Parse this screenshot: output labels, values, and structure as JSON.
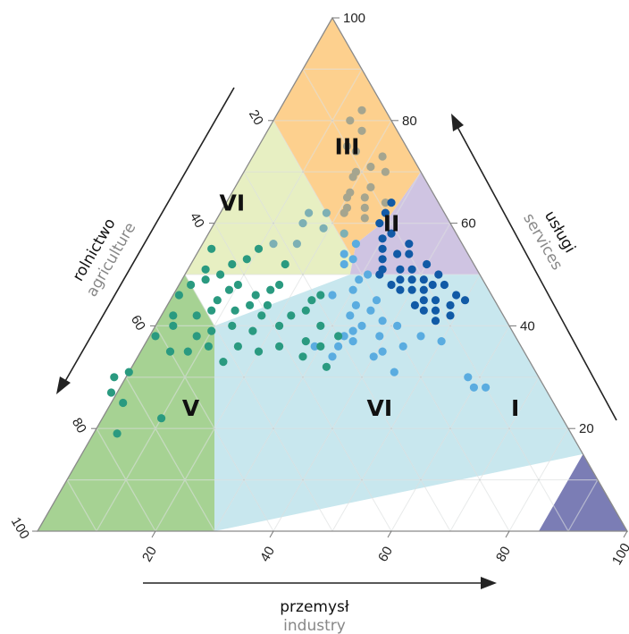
{
  "chart_data": {
    "type": "scatter",
    "subtype": "ternary",
    "axes": {
      "bottom": {
        "label_main": "przemysł",
        "label_sub": "industry",
        "ticks": [
          "20",
          "40",
          "60",
          "80",
          "100"
        ]
      },
      "left": {
        "label_main": "rolnictwo",
        "label_sub": "agriculture",
        "ticks": [
          "20",
          "40",
          "60",
          "80",
          "100"
        ]
      },
      "right": {
        "label_main": "usługi",
        "label_sub": "services",
        "ticks": [
          "20",
          "40",
          "60",
          "80",
          "100"
        ]
      }
    },
    "grid": true,
    "grid_step": 10,
    "colors": {
      "region_I": "#7b7db5",
      "region_II": "#cfc4e2",
      "region_III": "#fdd08e",
      "region_V": "#a6d293",
      "region_VI_top": "#e7efc2",
      "region_VI_center": "#c8e7ee",
      "point_agri": "#2a9a80",
      "point_mixed": "#7db0b4",
      "point_services": "#a5a58f",
      "point_industry": "#5aace0",
      "point_dark": "#115aa6"
    },
    "regions": [
      {
        "id": "I",
        "label": "I"
      },
      {
        "id": "II",
        "label": "II"
      },
      {
        "id": "III",
        "label": "III"
      },
      {
        "id": "V",
        "label": "V"
      },
      {
        "id": "VI-top",
        "label": "VI"
      },
      {
        "id": "VI-center",
        "label": "VI"
      }
    ],
    "series": [
      {
        "group": "services",
        "points": [
          [
            4,
            82
          ],
          [
            7,
            80
          ],
          [
            6,
            78
          ],
          [
            5,
            73
          ],
          [
            9,
            74
          ],
          [
            10,
            75
          ],
          [
            8,
            71
          ],
          [
            6,
            70
          ],
          [
            11,
            70
          ],
          [
            12,
            69
          ],
          [
            10,
            67
          ],
          [
            14,
            66
          ],
          [
            12,
            65
          ],
          [
            15,
            65
          ],
          [
            9,
            64
          ],
          [
            13,
            63
          ],
          [
            16,
            63
          ],
          [
            17,
            62
          ],
          [
            14,
            61
          ]
        ]
      },
      {
        "group": "mixed",
        "points": [
          [
            20,
            62
          ],
          [
            23,
            62
          ],
          [
            25,
            60
          ],
          [
            22,
            59
          ],
          [
            28,
            56
          ],
          [
            32,
            56
          ],
          [
            19,
            58
          ]
        ]
      },
      {
        "group": "dark",
        "points": [
          [
            8,
            64
          ],
          [
            10,
            62
          ],
          [
            12,
            60
          ],
          [
            11,
            58
          ],
          [
            13,
            57
          ],
          [
            9,
            56
          ],
          [
            14,
            55
          ],
          [
            10,
            54
          ],
          [
            12,
            54
          ],
          [
            15,
            53
          ],
          [
            8,
            52
          ],
          [
            11,
            51
          ],
          [
            13,
            51
          ],
          [
            16,
            51
          ],
          [
            7,
            50
          ],
          [
            10,
            49
          ],
          [
            12,
            49
          ],
          [
            14,
            49
          ],
          [
            9,
            48
          ],
          [
            11,
            47
          ],
          [
            13,
            47
          ],
          [
            15,
            47
          ],
          [
            6,
            46
          ],
          [
            10,
            45
          ],
          [
            12,
            45
          ],
          [
            8,
            44
          ],
          [
            14,
            44
          ],
          [
            11,
            43
          ],
          [
            13,
            43
          ],
          [
            9,
            42
          ],
          [
            12,
            41
          ],
          [
            7,
            48
          ],
          [
            16,
            48
          ],
          [
            17,
            50
          ],
          [
            5,
            45
          ]
        ]
      },
      {
        "group": "industry",
        "points": [
          [
            18,
            56
          ],
          [
            20,
            53
          ],
          [
            22,
            52
          ],
          [
            19,
            50
          ],
          [
            21,
            49
          ],
          [
            23,
            47
          ],
          [
            20,
            45
          ],
          [
            24,
            44
          ],
          [
            22,
            43
          ],
          [
            26,
            42
          ],
          [
            21,
            41
          ],
          [
            25,
            40
          ],
          [
            19,
            40
          ],
          [
            23,
            38
          ],
          [
            27,
            39
          ],
          [
            29,
            38
          ],
          [
            20,
            36
          ],
          [
            24,
            35
          ],
          [
            26,
            34
          ],
          [
            28,
            37
          ],
          [
            31,
            36
          ],
          [
            33,
            34
          ],
          [
            35,
            36
          ],
          [
            24,
            31
          ],
          [
            13,
            37
          ],
          [
            12,
            30
          ],
          [
            10,
            28
          ],
          [
            12,
            28
          ],
          [
            16,
            38
          ],
          [
            27,
            46
          ],
          [
            21,
            54
          ]
        ]
      },
      {
        "group": "agri",
        "points": [
          [
            35,
            55
          ],
          [
            38,
            53
          ],
          [
            41,
            52
          ],
          [
            44,
            50
          ],
          [
            47,
            49
          ],
          [
            50,
            48
          ],
          [
            44,
            47
          ],
          [
            40,
            46
          ],
          [
            47,
            45
          ],
          [
            53,
            46
          ],
          [
            35,
            48
          ],
          [
            37,
            47
          ],
          [
            39,
            44
          ],
          [
            42,
            44
          ],
          [
            45,
            43
          ],
          [
            49,
            43
          ],
          [
            52,
            42
          ],
          [
            56,
            42
          ],
          [
            41,
            42
          ],
          [
            36,
            42
          ],
          [
            33,
            43
          ],
          [
            31,
            45
          ],
          [
            29,
            46
          ],
          [
            47,
            40
          ],
          [
            51,
            39
          ],
          [
            54,
            38
          ],
          [
            44,
            39
          ],
          [
            39,
            40
          ],
          [
            32,
            40
          ],
          [
            30,
            38
          ],
          [
            34,
            36
          ],
          [
            41,
            36
          ],
          [
            57,
            40
          ],
          [
            61,
            38
          ],
          [
            36,
            37
          ],
          [
            45,
            35
          ],
          [
            48,
            36
          ],
          [
            53,
            36
          ],
          [
            57,
            35
          ],
          [
            60,
            35
          ],
          [
            38,
            34
          ],
          [
            35,
            32
          ],
          [
            52,
            33
          ],
          [
            69,
            31
          ],
          [
            72,
            30
          ],
          [
            74,
            27
          ],
          [
            73,
            25
          ],
          [
            68,
            22
          ],
          [
            77,
            19
          ],
          [
            42,
            48
          ],
          [
            46,
            51
          ],
          [
            43,
            55
          ],
          [
            32,
            52
          ]
        ]
      }
    ]
  }
}
